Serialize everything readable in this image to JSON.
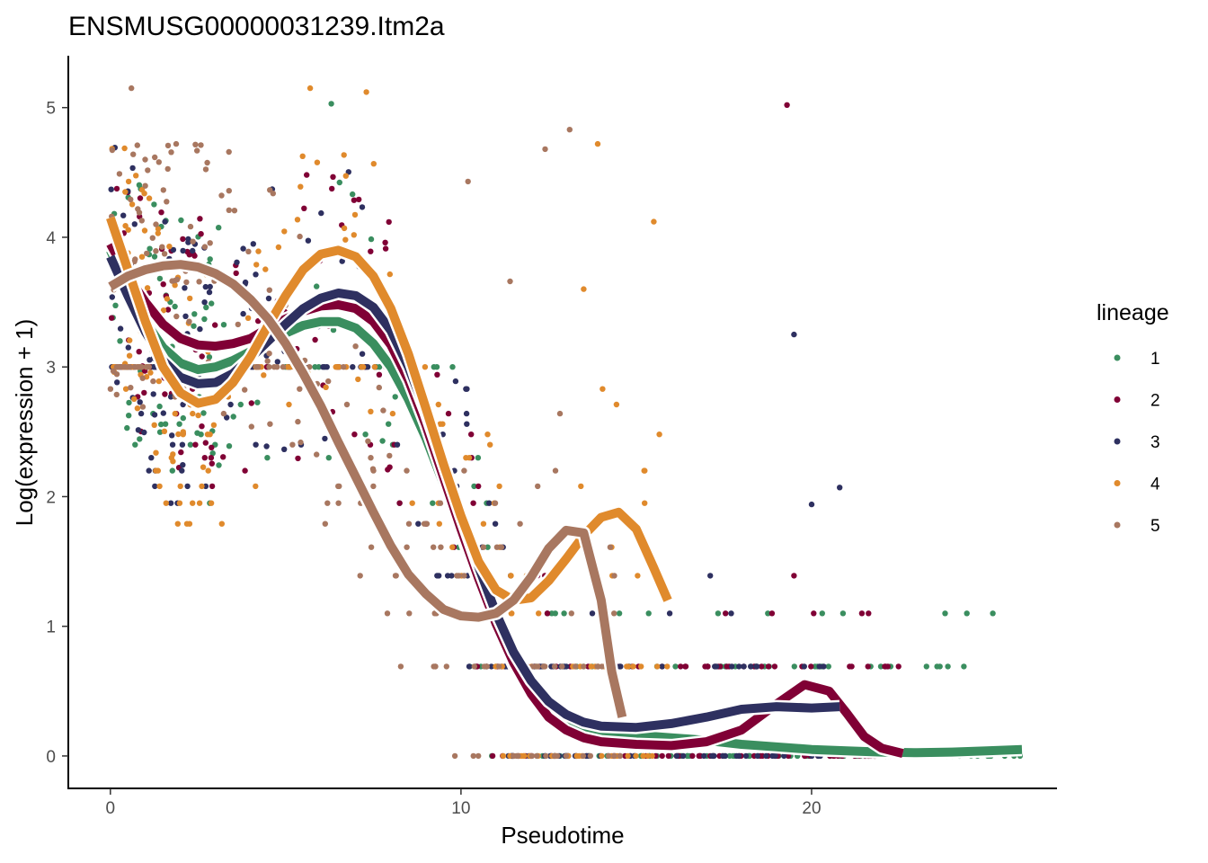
{
  "chart_data": {
    "type": "scatter",
    "title": "ENSMUSG00000031239.Itm2a",
    "xlabel": "Pseudotime",
    "ylabel": "Log(expression + 1)",
    "xlim": [
      -1.2,
      27.0
    ],
    "ylim": [
      -0.25,
      5.4
    ],
    "x_ticks": [
      0,
      10,
      20
    ],
    "y_ticks": [
      0,
      1,
      2,
      3,
      4,
      5
    ],
    "x_tick_labels": [
      "0",
      "10",
      "20"
    ],
    "y_tick_labels": [
      "0",
      "1",
      "2",
      "3",
      "4",
      "5"
    ],
    "legend": {
      "title": "lineage",
      "position": "right"
    },
    "series": [
      {
        "name": "1",
        "color": "#3a8e5f",
        "x_max": 26.0,
        "curve": [
          [
            0,
            3.9
          ],
          [
            0.5,
            3.6
          ],
          [
            1,
            3.35
          ],
          [
            1.5,
            3.15
          ],
          [
            2,
            3.03
          ],
          [
            2.5,
            2.98
          ],
          [
            3,
            3.0
          ],
          [
            3.5,
            3.05
          ],
          [
            4,
            3.12
          ],
          [
            4.5,
            3.2
          ],
          [
            5,
            3.26
          ],
          [
            5.5,
            3.32
          ],
          [
            6,
            3.35
          ],
          [
            6.5,
            3.35
          ],
          [
            7,
            3.3
          ],
          [
            7.5,
            3.18
          ],
          [
            8,
            3.0
          ],
          [
            8.5,
            2.75
          ],
          [
            9,
            2.45
          ],
          [
            9.5,
            2.1
          ],
          [
            10,
            1.72
          ],
          [
            10.5,
            1.35
          ],
          [
            11,
            1.0
          ],
          [
            11.5,
            0.7
          ],
          [
            12,
            0.48
          ],
          [
            12.5,
            0.33
          ],
          [
            13,
            0.24
          ],
          [
            13.5,
            0.2
          ],
          [
            14,
            0.18
          ],
          [
            15,
            0.16
          ],
          [
            16,
            0.14
          ],
          [
            17,
            0.12
          ],
          [
            18,
            0.09
          ],
          [
            19,
            0.07
          ],
          [
            20,
            0.05
          ],
          [
            21,
            0.04
          ],
          [
            22,
            0.03
          ],
          [
            23,
            0.025
          ],
          [
            24,
            0.03
          ],
          [
            25,
            0.04
          ],
          [
            26,
            0.05
          ]
        ]
      },
      {
        "name": "2",
        "color": "#800035",
        "x_max": 22.6,
        "curve": [
          [
            0,
            3.95
          ],
          [
            0.5,
            3.7
          ],
          [
            1,
            3.5
          ],
          [
            1.5,
            3.33
          ],
          [
            2,
            3.22
          ],
          [
            2.5,
            3.17
          ],
          [
            3,
            3.16
          ],
          [
            3.5,
            3.18
          ],
          [
            4,
            3.22
          ],
          [
            4.5,
            3.3
          ],
          [
            5,
            3.37
          ],
          [
            5.5,
            3.43
          ],
          [
            6,
            3.47
          ],
          [
            6.5,
            3.48
          ],
          [
            7,
            3.45
          ],
          [
            7.5,
            3.35
          ],
          [
            8,
            3.17
          ],
          [
            8.5,
            2.9
          ],
          [
            9,
            2.55
          ],
          [
            9.5,
            2.15
          ],
          [
            10,
            1.75
          ],
          [
            10.5,
            1.37
          ],
          [
            11,
            1.02
          ],
          [
            11.5,
            0.72
          ],
          [
            12,
            0.48
          ],
          [
            12.5,
            0.3
          ],
          [
            13,
            0.2
          ],
          [
            13.5,
            0.14
          ],
          [
            14,
            0.11
          ],
          [
            15,
            0.09
          ],
          [
            16,
            0.08
          ],
          [
            17,
            0.11
          ],
          [
            18,
            0.2
          ],
          [
            19,
            0.4
          ],
          [
            19.8,
            0.55
          ],
          [
            20.5,
            0.5
          ],
          [
            21,
            0.33
          ],
          [
            21.5,
            0.15
          ],
          [
            22,
            0.06
          ],
          [
            22.6,
            0.02
          ]
        ]
      },
      {
        "name": "3",
        "color": "#2e3060",
        "x_max": 20.8,
        "curve": [
          [
            0,
            3.85
          ],
          [
            0.5,
            3.55
          ],
          [
            1,
            3.27
          ],
          [
            1.5,
            3.05
          ],
          [
            2,
            2.92
          ],
          [
            2.5,
            2.87
          ],
          [
            3,
            2.88
          ],
          [
            3.5,
            2.95
          ],
          [
            4,
            3.07
          ],
          [
            4.5,
            3.2
          ],
          [
            5,
            3.33
          ],
          [
            5.5,
            3.45
          ],
          [
            6,
            3.53
          ],
          [
            6.5,
            3.57
          ],
          [
            7,
            3.55
          ],
          [
            7.5,
            3.46
          ],
          [
            8,
            3.28
          ],
          [
            8.5,
            3.0
          ],
          [
            9,
            2.65
          ],
          [
            9.5,
            2.25
          ],
          [
            10,
            1.85
          ],
          [
            10.5,
            1.46
          ],
          [
            11,
            1.1
          ],
          [
            11.5,
            0.8
          ],
          [
            12,
            0.58
          ],
          [
            12.5,
            0.42
          ],
          [
            13,
            0.32
          ],
          [
            13.5,
            0.26
          ],
          [
            14,
            0.23
          ],
          [
            15,
            0.22
          ],
          [
            16,
            0.25
          ],
          [
            17,
            0.3
          ],
          [
            18,
            0.36
          ],
          [
            19,
            0.38
          ],
          [
            20,
            0.37
          ],
          [
            20.8,
            0.38
          ]
        ]
      },
      {
        "name": "4",
        "color": "#e08a2c",
        "x_max": 15.9,
        "curve": [
          [
            0,
            4.15
          ],
          [
            0.5,
            3.75
          ],
          [
            1,
            3.35
          ],
          [
            1.5,
            3.0
          ],
          [
            2,
            2.8
          ],
          [
            2.5,
            2.72
          ],
          [
            3,
            2.75
          ],
          [
            3.5,
            2.88
          ],
          [
            4,
            3.08
          ],
          [
            4.5,
            3.32
          ],
          [
            5,
            3.55
          ],
          [
            5.5,
            3.75
          ],
          [
            6,
            3.87
          ],
          [
            6.5,
            3.9
          ],
          [
            7,
            3.85
          ],
          [
            7.5,
            3.7
          ],
          [
            8,
            3.45
          ],
          [
            8.5,
            3.1
          ],
          [
            9,
            2.68
          ],
          [
            9.5,
            2.25
          ],
          [
            10,
            1.85
          ],
          [
            10.5,
            1.5
          ],
          [
            11,
            1.28
          ],
          [
            11.5,
            1.2
          ],
          [
            12,
            1.22
          ],
          [
            12.5,
            1.35
          ],
          [
            13,
            1.52
          ],
          [
            13.5,
            1.7
          ],
          [
            14,
            1.84
          ],
          [
            14.5,
            1.88
          ],
          [
            15,
            1.75
          ],
          [
            15.5,
            1.45
          ],
          [
            15.9,
            1.2
          ]
        ]
      },
      {
        "name": "5",
        "color": "#a87760",
        "x_max": 14.6,
        "curve": [
          [
            0,
            3.62
          ],
          [
            0.5,
            3.7
          ],
          [
            1,
            3.75
          ],
          [
            1.5,
            3.78
          ],
          [
            2,
            3.79
          ],
          [
            2.5,
            3.77
          ],
          [
            3,
            3.72
          ],
          [
            3.5,
            3.64
          ],
          [
            4,
            3.52
          ],
          [
            4.5,
            3.37
          ],
          [
            5,
            3.18
          ],
          [
            5.5,
            2.95
          ],
          [
            6,
            2.7
          ],
          [
            6.5,
            2.42
          ],
          [
            7,
            2.15
          ],
          [
            7.5,
            1.88
          ],
          [
            8,
            1.62
          ],
          [
            8.5,
            1.4
          ],
          [
            9,
            1.25
          ],
          [
            9.5,
            1.13
          ],
          [
            10,
            1.08
          ],
          [
            10.5,
            1.07
          ],
          [
            11,
            1.1
          ],
          [
            11.5,
            1.2
          ],
          [
            12,
            1.38
          ],
          [
            12.5,
            1.6
          ],
          [
            13,
            1.74
          ],
          [
            13.5,
            1.72
          ],
          [
            14,
            1.2
          ],
          [
            14.3,
            0.65
          ],
          [
            14.6,
            0.3
          ]
        ]
      }
    ],
    "outliers": [
      {
        "x": 0.6,
        "y": 5.15,
        "lineage": "5"
      },
      {
        "x": 5.7,
        "y": 5.15,
        "lineage": "4"
      },
      {
        "x": 7.3,
        "y": 5.12,
        "lineage": "4"
      },
      {
        "x": 6.3,
        "y": 5.03,
        "lineage": "1"
      },
      {
        "x": 19.3,
        "y": 5.02,
        "lineage": "2"
      },
      {
        "x": 13.1,
        "y": 4.83,
        "lineage": "5"
      },
      {
        "x": 13.9,
        "y": 4.72,
        "lineage": "4"
      },
      {
        "x": 12.4,
        "y": 4.68,
        "lineage": "5"
      },
      {
        "x": 10.2,
        "y": 4.43,
        "lineage": "5"
      },
      {
        "x": 19.5,
        "y": 3.25,
        "lineage": "3"
      },
      {
        "x": 20.0,
        "y": 1.94,
        "lineage": "3"
      },
      {
        "x": 20.8,
        "y": 2.07,
        "lineage": "3"
      },
      {
        "x": 15.5,
        "y": 4.12,
        "lineage": "4"
      },
      {
        "x": 13.5,
        "y": 3.6,
        "lineage": "4"
      },
      {
        "x": 11.4,
        "y": 3.66,
        "lineage": "5"
      }
    ],
    "levels": [
      0,
      0.69,
      1.1,
      1.39,
      1.61,
      1.79,
      1.95,
      2.08,
      2.2,
      2.3,
      2.4,
      2.48,
      2.56,
      2.64,
      2.71,
      2.77,
      2.83,
      2.89,
      2.94,
      3.0
    ]
  }
}
